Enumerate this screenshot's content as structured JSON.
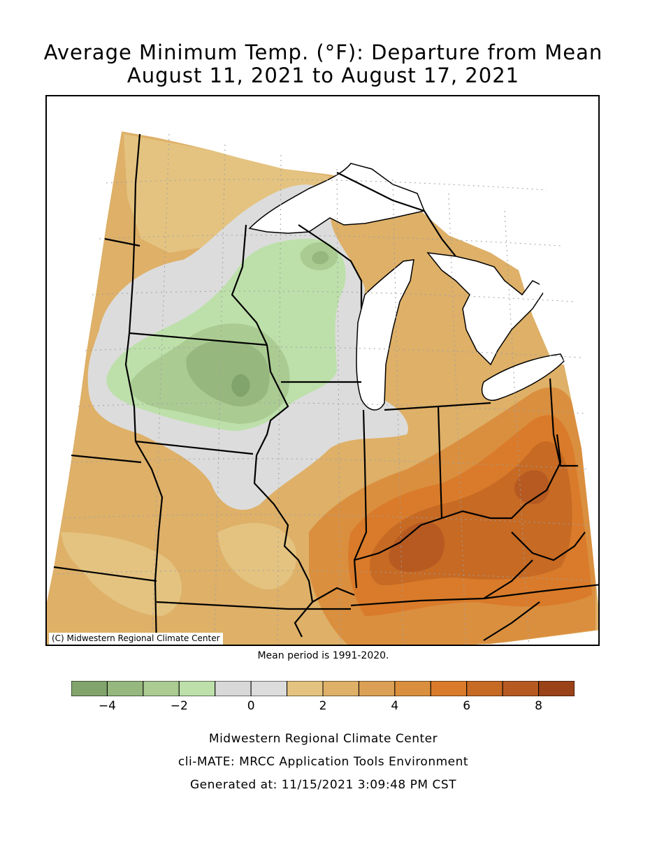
{
  "title": {
    "line1": "Average Minimum Temp. (°F): Departure from Mean",
    "line2": "August 11, 2021 to August 17, 2021"
  },
  "map": {
    "copyright": "(C) Midwestern Regional Climate Center",
    "mean_period": "Mean period is 1991-2020.",
    "colors": {
      "water": "#ffffff",
      "outside": "#ffffff",
      "boundary": "#000000",
      "grid": "#a0a0a0"
    }
  },
  "legend": {
    "bins": [
      {
        "from": -5,
        "to": -4,
        "color": "#81a46c"
      },
      {
        "from": -4,
        "to": -3,
        "color": "#96b87e"
      },
      {
        "from": -3,
        "to": -2,
        "color": "#aacb92"
      },
      {
        "from": -2,
        "to": -1,
        "color": "#bde0aa"
      },
      {
        "from": -1,
        "to": 0,
        "color": "#d8d8d8"
      },
      {
        "from": 0,
        "to": 1,
        "color": "#dcdcdc"
      },
      {
        "from": 1,
        "to": 2,
        "color": "#e4c380"
      },
      {
        "from": 2,
        "to": 3,
        "color": "#deb068"
      },
      {
        "from": 3,
        "to": 4,
        "color": "#dba055"
      },
      {
        "from": 4,
        "to": 5,
        "color": "#da8f3f"
      },
      {
        "from": 5,
        "to": 6,
        "color": "#d97b2a"
      },
      {
        "from": 6,
        "to": 7,
        "color": "#c66a24"
      },
      {
        "from": 7,
        "to": 8,
        "color": "#b65a22"
      },
      {
        "from": 8,
        "to": 9,
        "color": "#9a4218"
      }
    ],
    "tick_labels": [
      "−4",
      "−2",
      "0",
      "2",
      "4",
      "6",
      "8"
    ],
    "tick_values": [
      -4,
      -2,
      0,
      2,
      4,
      6,
      8
    ]
  },
  "footer": {
    "line1": "Midwestern Regional Climate Center",
    "line2": "cli-MATE: MRCC Application Tools Environment",
    "line3": "Generated at: 11/15/2021 3:09:48 PM CST"
  }
}
